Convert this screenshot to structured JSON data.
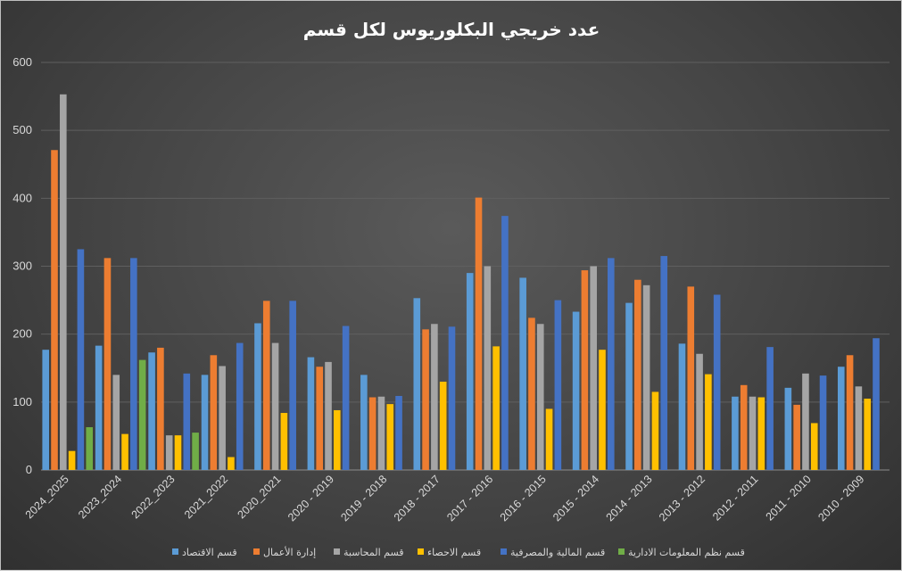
{
  "chart_data": {
    "type": "bar",
    "title": "عدد خريجي البكلوريوس لكل قسم",
    "xlabel": "",
    "ylabel": "",
    "ylim": [
      0,
      600
    ],
    "yticks": [
      0,
      100,
      200,
      300,
      400,
      500,
      600
    ],
    "grid": true,
    "legend_position": "bottom",
    "categories": [
      "2024_2025",
      "2023_2024",
      "2022_2023",
      "2021_2022",
      "2020_2021",
      "2020 - 2019",
      "2019 - 2018",
      "2018 - 2017",
      "2017 - 2016",
      "2016 - 2015",
      "2015 - 2014",
      "2014 - 2013",
      "2013 - 2012",
      "2012 - 2011",
      "2011 - 2010",
      "2010 - 2009"
    ],
    "series": [
      {
        "name": "قسم الاقتصاد",
        "color": "#5b9bd5",
        "values": [
          177,
          183,
          173,
          140,
          216,
          166,
          140,
          253,
          290,
          283,
          233,
          246,
          186,
          108,
          121,
          152
        ]
      },
      {
        "name": "إدارة الأعمال",
        "color": "#ed7d31",
        "values": [
          471,
          312,
          180,
          169,
          249,
          152,
          107,
          207,
          401,
          224,
          294,
          280,
          270,
          125,
          96,
          169
        ]
      },
      {
        "name": "قسم المحاسبة",
        "color": "#a5a5a5",
        "values": [
          553,
          140,
          51,
          153,
          187,
          159,
          108,
          215,
          300,
          215,
          300,
          272,
          171,
          108,
          142,
          123
        ]
      },
      {
        "name": "قسم الاحصاء",
        "color": "#ffc000",
        "values": [
          28,
          53,
          51,
          19,
          84,
          88,
          97,
          130,
          182,
          90,
          177,
          115,
          141,
          107,
          69,
          105
        ]
      },
      {
        "name": "قسم المالية والمصرفية",
        "color": "#4472c4",
        "values": [
          325,
          312,
          142,
          187,
          249,
          212,
          109,
          211,
          374,
          250,
          312,
          315,
          258,
          181,
          139,
          194
        ]
      },
      {
        "name": "قسم نظم المعلومات الادارية",
        "color": "#70ad47",
        "values": [
          63,
          162,
          55,
          null,
          null,
          null,
          null,
          null,
          null,
          null,
          null,
          null,
          null,
          null,
          null,
          null
        ]
      }
    ]
  }
}
